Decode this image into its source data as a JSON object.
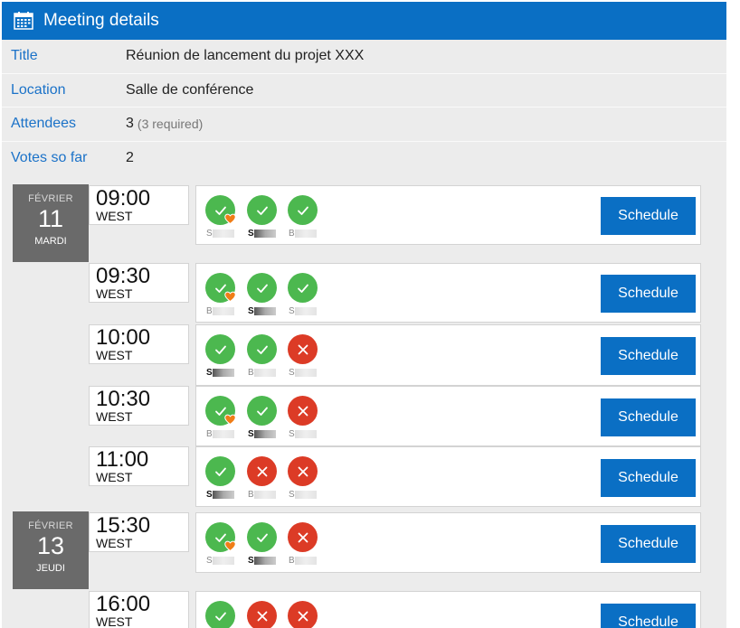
{
  "header": {
    "title": "Meeting details",
    "icon": "calendar-icon"
  },
  "details": [
    {
      "label": "Title",
      "value": "Réunion de lancement du projet XXX",
      "sub": ""
    },
    {
      "label": "Location",
      "value": "Salle de conférence",
      "sub": ""
    },
    {
      "label": "Attendees",
      "value": "3",
      "sub": "(3 required)"
    },
    {
      "label": "Votes so far",
      "value": "2",
      "sub": ""
    }
  ],
  "days": [
    {
      "month": "FÉVRIER",
      "day": "11",
      "weekday": "MARDI"
    },
    {
      "month": "FÉVRIER",
      "day": "13",
      "weekday": "JEUDI"
    }
  ],
  "slots": [
    {
      "time": "09:00",
      "tz": "WEST",
      "button": "Schedule",
      "votes": [
        {
          "status": "yes",
          "heart": true,
          "initial": "S",
          "bold": false
        },
        {
          "status": "yes",
          "heart": false,
          "initial": "S",
          "bold": true
        },
        {
          "status": "yes",
          "heart": false,
          "initial": "B",
          "bold": false
        }
      ]
    },
    {
      "time": "09:30",
      "tz": "WEST",
      "button": "Schedule",
      "votes": [
        {
          "status": "yes",
          "heart": true,
          "initial": "B",
          "bold": false
        },
        {
          "status": "yes",
          "heart": false,
          "initial": "S",
          "bold": true
        },
        {
          "status": "yes",
          "heart": false,
          "initial": "S",
          "bold": false
        }
      ]
    },
    {
      "time": "10:00",
      "tz": "WEST",
      "button": "Schedule",
      "votes": [
        {
          "status": "yes",
          "heart": false,
          "initial": "S",
          "bold": true
        },
        {
          "status": "yes",
          "heart": false,
          "initial": "B",
          "bold": false
        },
        {
          "status": "no",
          "heart": false,
          "initial": "S",
          "bold": false
        }
      ]
    },
    {
      "time": "10:30",
      "tz": "WEST",
      "button": "Schedule",
      "votes": [
        {
          "status": "yes",
          "heart": true,
          "initial": "B",
          "bold": false
        },
        {
          "status": "yes",
          "heart": false,
          "initial": "S",
          "bold": true
        },
        {
          "status": "no",
          "heart": false,
          "initial": "S",
          "bold": false
        }
      ]
    },
    {
      "time": "11:00",
      "tz": "WEST",
      "button": "Schedule",
      "votes": [
        {
          "status": "yes",
          "heart": false,
          "initial": "S",
          "bold": true
        },
        {
          "status": "no",
          "heart": false,
          "initial": "B",
          "bold": false
        },
        {
          "status": "no",
          "heart": false,
          "initial": "S",
          "bold": false
        }
      ]
    },
    {
      "time": "15:30",
      "tz": "WEST",
      "button": "Schedule",
      "votes": [
        {
          "status": "yes",
          "heart": true,
          "initial": "S",
          "bold": false
        },
        {
          "status": "yes",
          "heart": false,
          "initial": "S",
          "bold": true
        },
        {
          "status": "no",
          "heart": false,
          "initial": "B",
          "bold": false
        }
      ]
    },
    {
      "time": "16:00",
      "tz": "WEST",
      "button": "Schedule",
      "votes": [
        {
          "status": "yes",
          "heart": false,
          "initial": "",
          "bold": false
        },
        {
          "status": "no",
          "heart": false,
          "initial": "",
          "bold": false
        },
        {
          "status": "no",
          "heart": false,
          "initial": "",
          "bold": false
        }
      ]
    }
  ],
  "colors": {
    "accent": "#0a6fc4",
    "yes": "#4cb84f",
    "no": "#dc3b26",
    "heart": "#f07d17",
    "dayBox": "#6a6a6a"
  }
}
